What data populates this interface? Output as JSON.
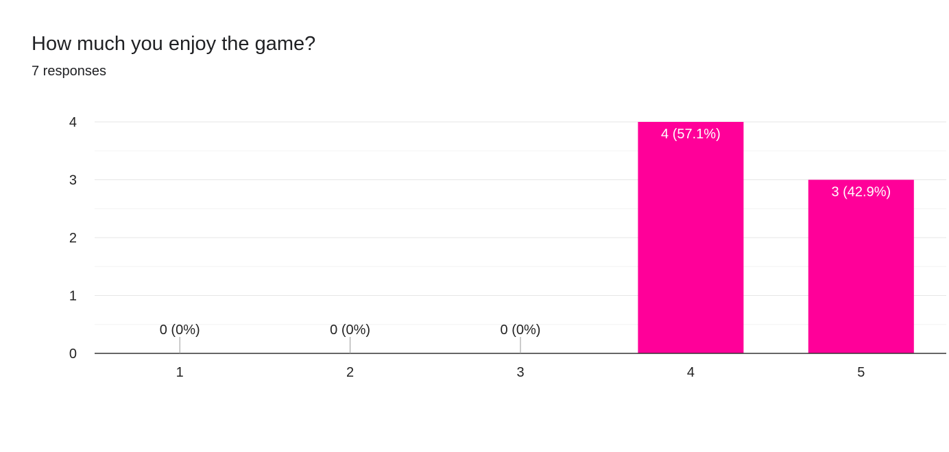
{
  "header": {
    "title": "How much you enjoy the game?",
    "subtitle": "7 responses"
  },
  "colors": {
    "bar": "#ff0099",
    "grid_major": "#e6e6e6",
    "grid_minor": "#f3f3f3",
    "axis": "#333333"
  },
  "chart_data": {
    "type": "bar",
    "title": "How much you enjoy the game?",
    "subtitle": "7 responses",
    "categories": [
      "1",
      "2",
      "3",
      "4",
      "5"
    ],
    "values": [
      0,
      0,
      0,
      4,
      3
    ],
    "data_labels": [
      "0 (0%)",
      "0 (0%)",
      "0 (0%)",
      "4 (57.1%)",
      "3 (42.9%)"
    ],
    "y_ticks": [
      0,
      1,
      2,
      3,
      4
    ],
    "ylim": [
      0,
      4
    ],
    "grid": true,
    "legend": "none"
  }
}
